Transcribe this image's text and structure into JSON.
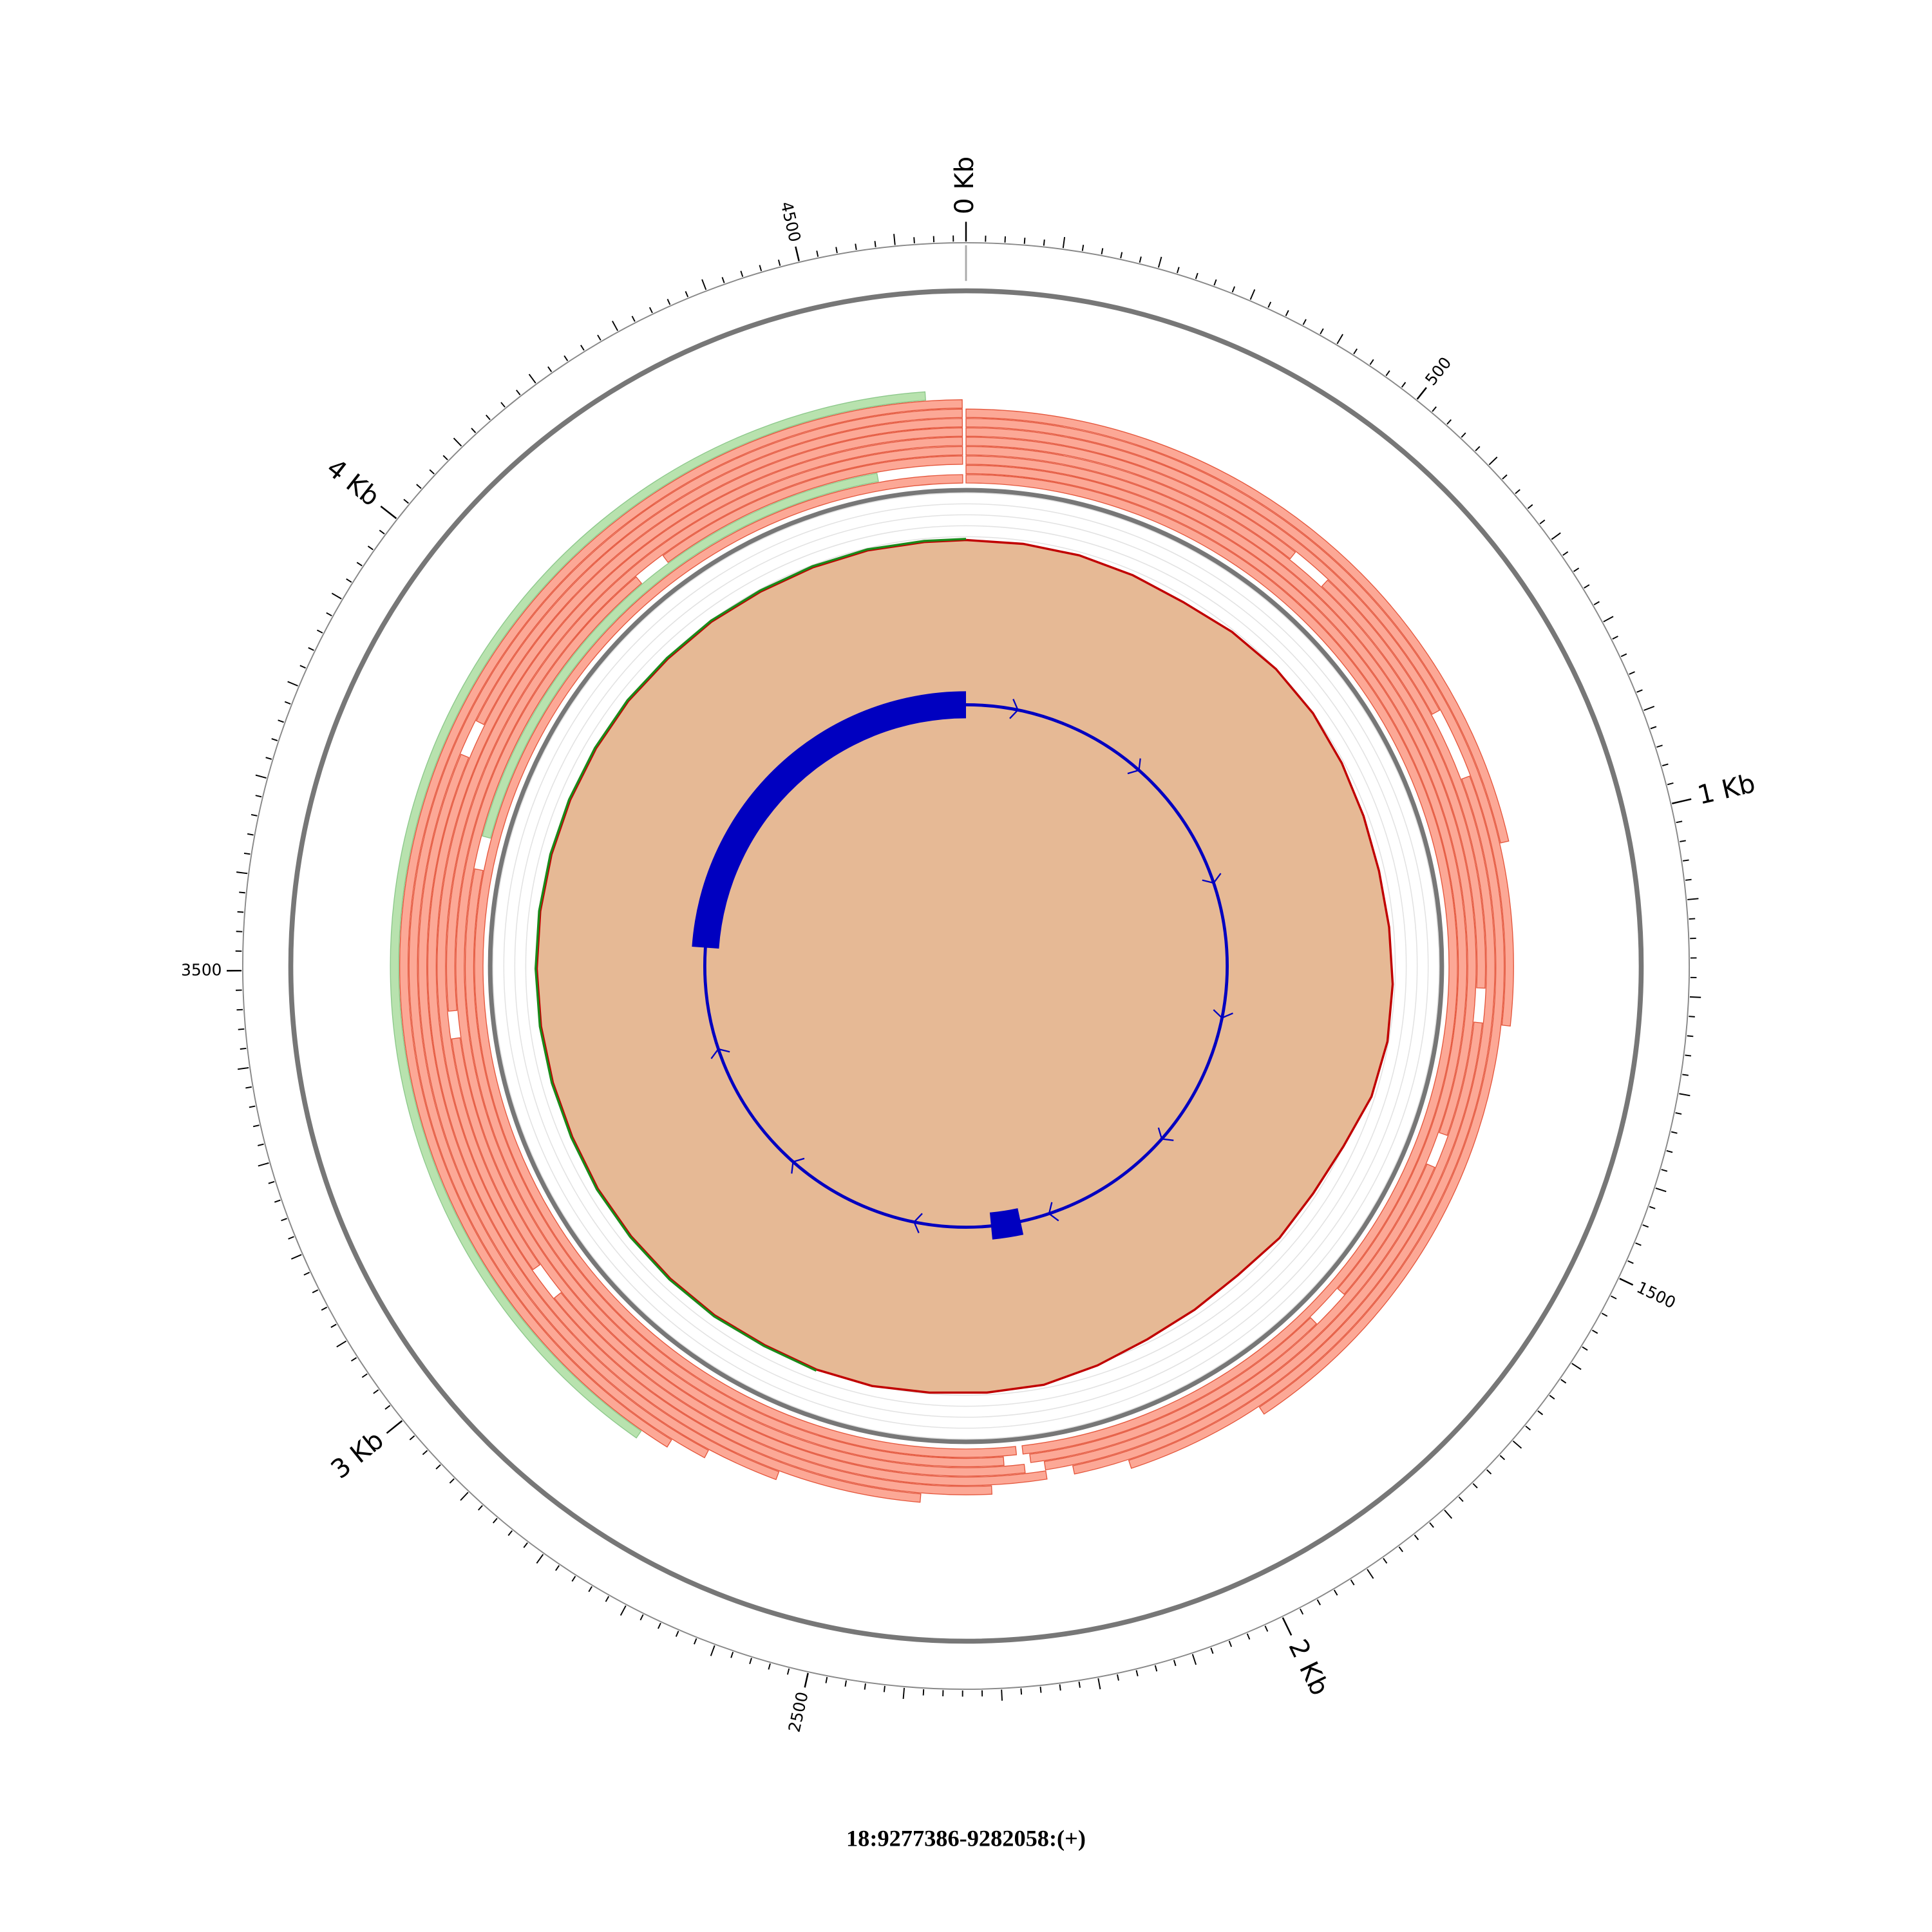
{
  "chart_data": {
    "type": "circos",
    "title": "18:9277386-9282058:(+)",
    "xlim": [
      0,
      4673
    ],
    "xticks": [
      {
        "value": 0,
        "label": "0 Kb"
      },
      {
        "value": 500,
        "label": "500"
      },
      {
        "value": 1000,
        "label": "1 Kb"
      },
      {
        "value": 1500,
        "label": "1500"
      },
      {
        "value": 2000,
        "label": "2 Kb"
      },
      {
        "value": 2500,
        "label": "2500"
      },
      {
        "value": 3000,
        "label": "3 Kb"
      },
      {
        "value": 3500,
        "label": "3500"
      },
      {
        "value": 4000,
        "label": "4 Kb"
      },
      {
        "value": 4500,
        "label": "4500"
      }
    ],
    "minor_tick_interval": 20,
    "ideogram_color": "#000000",
    "band_boundaries": [
      0,
      143
    ],
    "reads": {
      "color": "#fca896",
      "rows": [
        [
          {
            "start": 0,
            "end": 2250
          },
          {
            "start": 2260,
            "end": 4668
          }
        ],
        [
          {
            "start": 0,
            "end": 1700
          },
          {
            "start": 1760,
            "end": 2240
          },
          {
            "start": 2280,
            "end": 3650
          },
          {
            "start": 3700,
            "end": 4540,
            "color": "#b8e2ae"
          }
        ],
        [
          {
            "start": 0,
            "end": 1420
          },
          {
            "start": 1470,
            "end": 2220
          },
          {
            "start": 2250,
            "end": 4150
          },
          {
            "start": 4200,
            "end": 4668
          }
        ],
        [
          {
            "start": 0,
            "end": 1200
          },
          {
            "start": 1250,
            "end": 2180
          },
          {
            "start": 2220,
            "end": 3400
          },
          {
            "start": 3440,
            "end": 4668
          }
        ],
        [
          {
            "start": 0,
            "end": 500
          },
          {
            "start": 560,
            "end": 2100
          },
          {
            "start": 2300,
            "end": 3000
          },
          {
            "start": 3050,
            "end": 4668
          }
        ],
        [
          {
            "start": 0,
            "end": 800
          },
          {
            "start": 900,
            "end": 1900
          },
          {
            "start": 2400,
            "end": 4668
          }
        ],
        [
          {
            "start": 0,
            "end": 1250
          },
          {
            "start": 2600,
            "end": 3800
          },
          {
            "start": 3850,
            "end": 4668
          }
        ],
        [
          {
            "start": 0,
            "end": 1000
          },
          {
            "start": 2700,
            "end": 4668
          }
        ],
        [
          {
            "start": 2750,
            "end": 4668
          }
        ],
        [
          {
            "start": 2790,
            "end": 4620,
            "color": "#b8e2ae"
          }
        ]
      ]
    },
    "coverage": {
      "x": [
        0,
        100,
        200,
        300,
        400,
        500,
        600,
        700,
        800,
        900,
        1000,
        1100,
        1200,
        1300,
        1400,
        1500,
        1600,
        1700,
        1800,
        1900,
        2000,
        2100,
        2200,
        2300,
        2400,
        2500,
        2600,
        2700,
        2800,
        2900,
        3000,
        3100,
        3200,
        3300,
        3400,
        3500,
        3600,
        3700,
        3800,
        3900,
        4000,
        4100,
        4200,
        4300,
        4400,
        4500,
        4600,
        4673
      ],
      "fill": "#e6b995",
      "ylim": [
        0,
        100
      ],
      "yticks": [
        0,
        10,
        20,
        30,
        40,
        50,
        60,
        70,
        80,
        90,
        100
      ],
      "series": [
        {
          "color": "#c00000",
          "values": [
            57,
            57,
            57,
            56,
            55,
            58,
            60,
            60,
            58,
            56,
            55,
            56,
            58,
            59,
            57,
            50,
            47,
            47,
            44,
            45,
            47,
            52,
            57,
            58,
            59,
            61,
            61,
            60,
            61,
            61,
            61,
            61,
            60,
            60,
            60,
            60,
            60,
            60,
            60,
            60,
            60,
            59,
            59,
            58,
            58,
            58,
            57,
            57
          ]
        },
        {
          "color": "#1a8a1a",
          "values": [
            null,
            null,
            null,
            null,
            null,
            null,
            null,
            null,
            null,
            null,
            null,
            null,
            null,
            null,
            null,
            null,
            null,
            null,
            null,
            null,
            null,
            null,
            null,
            null,
            null,
            null,
            62,
            61,
            62,
            62,
            62,
            62,
            61,
            61,
            61,
            61,
            61,
            61,
            61,
            61,
            61,
            60,
            60,
            59,
            59,
            59,
            58,
            58
          ]
        }
      ]
    },
    "gene": {
      "color": "#0000c0",
      "exons": [
        {
          "start": 3557,
          "end": 4673
        },
        {
          "start": 2180,
          "end": 2265
        }
      ]
    }
  }
}
